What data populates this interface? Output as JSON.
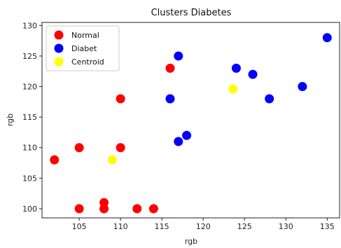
{
  "chart_data": {
    "type": "scatter",
    "title": "Clusters Diabetes",
    "xlabel": "rgb",
    "ylabel": "rgb",
    "xlim": [
      100.5,
      136.5
    ],
    "ylim": [
      98.5,
      130.5
    ],
    "xticks": [
      105,
      110,
      115,
      120,
      125,
      130,
      135
    ],
    "yticks": [
      100,
      105,
      110,
      115,
      120,
      125,
      130
    ],
    "grid": false,
    "legend": "top-left",
    "series": [
      {
        "name": "Normal",
        "color": "#ff0000",
        "points": [
          {
            "x": 102,
            "y": 108
          },
          {
            "x": 105,
            "y": 110
          },
          {
            "x": 105,
            "y": 100
          },
          {
            "x": 108,
            "y": 101
          },
          {
            "x": 108,
            "y": 100
          },
          {
            "x": 110,
            "y": 118
          },
          {
            "x": 110,
            "y": 110
          },
          {
            "x": 112,
            "y": 100
          },
          {
            "x": 114,
            "y": 100
          },
          {
            "x": 116,
            "y": 123
          }
        ]
      },
      {
        "name": "Diabet",
        "color": "#0000ff",
        "points": [
          {
            "x": 116,
            "y": 118
          },
          {
            "x": 117,
            "y": 125
          },
          {
            "x": 117,
            "y": 111
          },
          {
            "x": 118,
            "y": 112
          },
          {
            "x": 124,
            "y": 123
          },
          {
            "x": 126,
            "y": 122
          },
          {
            "x": 128,
            "y": 118
          },
          {
            "x": 132,
            "y": 120
          },
          {
            "x": 135,
            "y": 128
          }
        ]
      },
      {
        "name": "Centroid",
        "color": "#ffff00",
        "points": [
          {
            "x": 109,
            "y": 108
          },
          {
            "x": 123.6,
            "y": 119.6
          }
        ]
      }
    ]
  }
}
